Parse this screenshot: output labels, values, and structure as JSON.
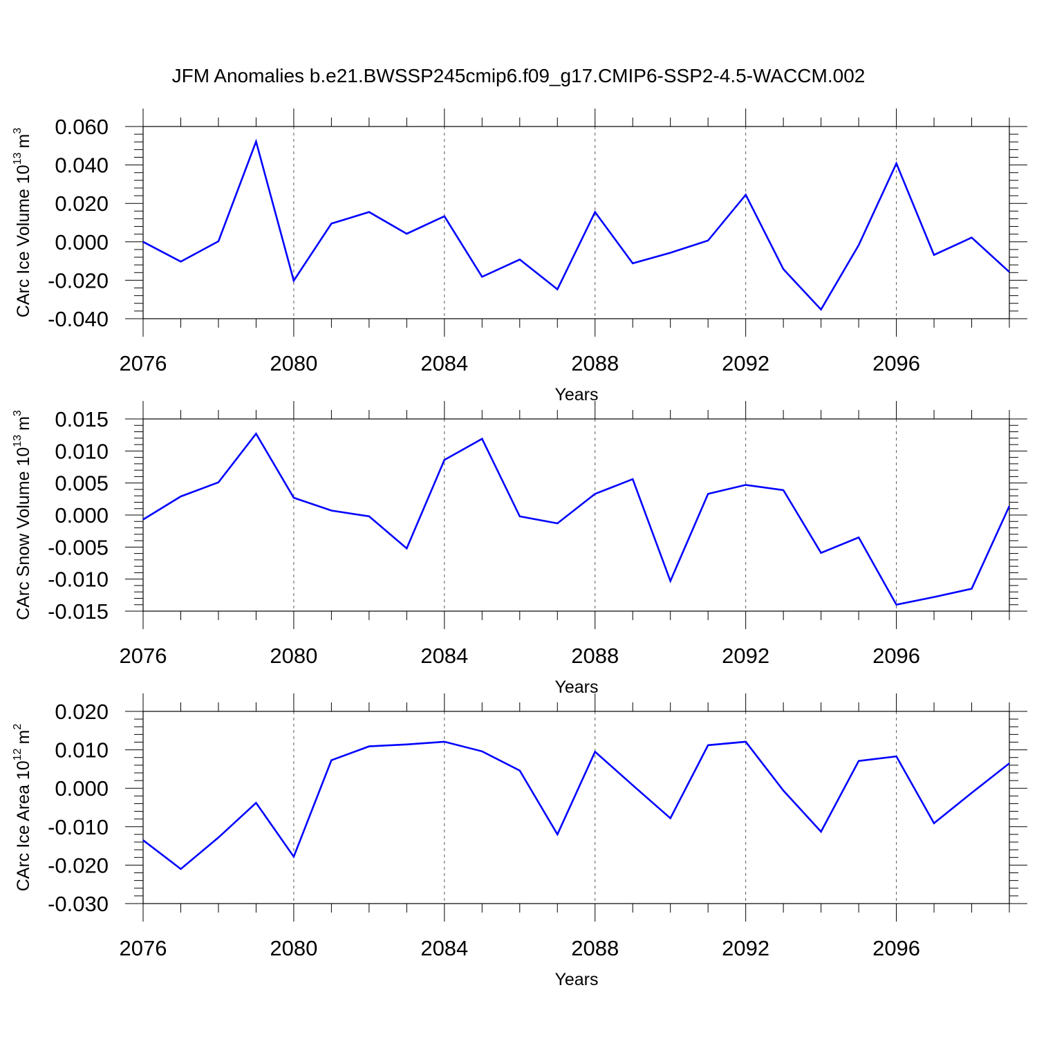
{
  "figure": {
    "title": "JFM Anomalies b.e21.BWSSP245cmip6.f09_g17.CMIP6-SSP2-4.5-WACCM.002"
  },
  "chart_data": [
    {
      "type": "line",
      "ylabel_main": "CArc Ice Volume 10",
      "ylabel_exp": "13",
      "ylabel_unit": "m",
      "ylabel_unit_exp": "3",
      "xlabel": "Years",
      "xlim": [
        2076,
        2099
      ],
      "ylim": [
        -0.04,
        0.06
      ],
      "grid": "dashed vertical lines at major x ticks",
      "x_ticks": [
        2076,
        2080,
        2084,
        2088,
        2092,
        2096
      ],
      "x_tick_labels": [
        "2076",
        "2080",
        "2084",
        "2088",
        "2092",
        "2096"
      ],
      "y_ticks": [
        0.06,
        0.04,
        0.02,
        0.0,
        -0.02,
        -0.04
      ],
      "y_tick_labels": [
        "0.060",
        "0.040",
        "0.020",
        "0.000",
        "-0.020",
        "-0.040"
      ],
      "line_color": "#0000ff",
      "series": [
        {
          "name": "CArc Ice Volume",
          "x": [
            2076,
            2077,
            2078,
            2079,
            2080,
            2081,
            2082,
            2083,
            2084,
            2085,
            2086,
            2087,
            2088,
            2089,
            2090,
            2091,
            2092,
            2093,
            2094,
            2095,
            2096,
            2097,
            2098,
            2099
          ],
          "values": [
            0.0,
            -0.0103,
            0.0003,
            0.0522,
            -0.0202,
            0.0095,
            0.0155,
            0.0042,
            0.0133,
            -0.0182,
            -0.0092,
            -0.0247,
            0.0155,
            -0.0112,
            -0.0057,
            0.0007,
            0.0245,
            -0.0142,
            -0.0352,
            -0.0017,
            0.0408,
            -0.0068,
            0.0022,
            -0.0157
          ]
        }
      ]
    },
    {
      "type": "line",
      "ylabel_main": "CArc Snow Volume 10",
      "ylabel_exp": "13",
      "ylabel_unit": "m",
      "ylabel_unit_exp": "3",
      "xlabel": "Years",
      "xlim": [
        2076,
        2099
      ],
      "ylim": [
        -0.015,
        0.015
      ],
      "grid": "dashed vertical lines at major x ticks",
      "x_ticks": [
        2076,
        2080,
        2084,
        2088,
        2092,
        2096
      ],
      "x_tick_labels": [
        "2076",
        "2080",
        "2084",
        "2088",
        "2092",
        "2096"
      ],
      "y_ticks": [
        0.015,
        0.01,
        0.005,
        0.0,
        -0.005,
        -0.01,
        -0.015
      ],
      "y_tick_labels": [
        "0.015",
        "0.010",
        "0.005",
        "0.000",
        "-0.005",
        "-0.010",
        "-0.015"
      ],
      "line_color": "#0000ff",
      "series": [
        {
          "name": "CArc Snow Volume",
          "x": [
            2076,
            2077,
            2078,
            2079,
            2080,
            2081,
            2082,
            2083,
            2084,
            2085,
            2086,
            2087,
            2088,
            2089,
            2090,
            2091,
            2092,
            2093,
            2094,
            2095,
            2096,
            2097,
            2098,
            2099
          ],
          "values": [
            -0.0007,
            0.0029,
            0.0051,
            0.0127,
            0.0027,
            0.0007,
            -0.0002,
            -0.0052,
            0.0086,
            0.0119,
            -0.0002,
            -0.0013,
            0.0033,
            0.0056,
            -0.0103,
            0.0033,
            0.0047,
            0.0039,
            -0.0059,
            -0.0035,
            -0.014,
            -0.0128,
            -0.0115,
            0.0014
          ]
        }
      ]
    },
    {
      "type": "line",
      "ylabel_main": "CArc Ice Area 10",
      "ylabel_exp": "12",
      "ylabel_unit": "m",
      "ylabel_unit_exp": "2",
      "xlabel": "Years",
      "xlim": [
        2076,
        2099
      ],
      "ylim": [
        -0.03,
        0.02
      ],
      "grid": "dashed vertical lines at major x ticks",
      "x_ticks": [
        2076,
        2080,
        2084,
        2088,
        2092,
        2096
      ],
      "x_tick_labels": [
        "2076",
        "2080",
        "2084",
        "2088",
        "2092",
        "2096"
      ],
      "y_ticks": [
        0.02,
        0.01,
        0.0,
        -0.01,
        -0.02,
        -0.03
      ],
      "y_tick_labels": [
        "0.020",
        "0.010",
        "0.000",
        "-0.010",
        "-0.020",
        "-0.030"
      ],
      "line_color": "#0000ff",
      "series": [
        {
          "name": "CArc Ice Area",
          "x": [
            2076,
            2077,
            2078,
            2079,
            2080,
            2081,
            2082,
            2083,
            2084,
            2085,
            2086,
            2087,
            2088,
            2089,
            2090,
            2091,
            2092,
            2093,
            2094,
            2095,
            2096,
            2097,
            2098,
            2099
          ],
          "values": [
            -0.0135,
            -0.021,
            -0.0128,
            -0.0038,
            -0.0178,
            0.0073,
            0.0109,
            0.0114,
            0.0121,
            0.0096,
            0.0046,
            -0.012,
            0.0095,
            0.0008,
            -0.0078,
            0.0112,
            0.0121,
            -0.0006,
            -0.0113,
            0.0071,
            0.0083,
            -0.0091,
            -0.0012,
            0.0065
          ]
        }
      ]
    }
  ]
}
